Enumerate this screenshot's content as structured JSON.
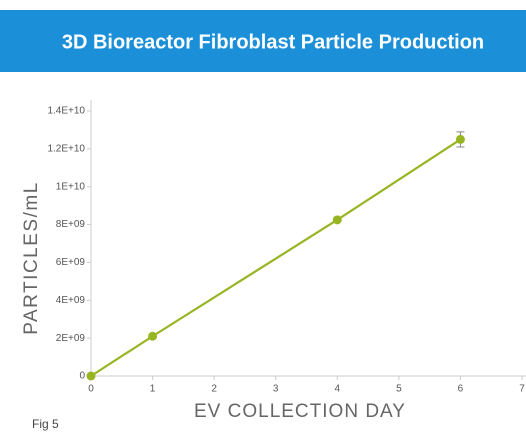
{
  "chart_data": {
    "type": "line",
    "title": "3D Bioreactor Fibroblast Particle Production",
    "x_label": "EV COLLECTION DAY",
    "y_label": "PARTICLES/mL",
    "annotation": "Fig 5",
    "x": [
      0,
      1,
      4,
      6
    ],
    "values": [
      0,
      2100000000,
      8250000000,
      12500000000
    ],
    "errors": [
      null,
      null,
      null,
      400000000
    ],
    "color": "#97b523",
    "header_color": "#1b8fd8",
    "xlim": [
      0,
      7
    ],
    "xticks": [
      0,
      1,
      2,
      3,
      4,
      5,
      6,
      7
    ],
    "ylim": [
      0,
      14000000000
    ],
    "yticks": [
      0,
      {
        "value": 2000000000,
        "label": "2E+09"
      },
      {
        "value": 4000000000,
        "label": "4E+09"
      },
      {
        "value": 6000000000,
        "label": "6E+09"
      },
      {
        "value": 8000000000,
        "label": "8E+09"
      },
      {
        "value": 10000000000,
        "label": "1E+10"
      },
      {
        "value": 12000000000,
        "label": "1.2E+10"
      },
      {
        "value": 14000000000,
        "label": "1.4E+10"
      }
    ]
  }
}
